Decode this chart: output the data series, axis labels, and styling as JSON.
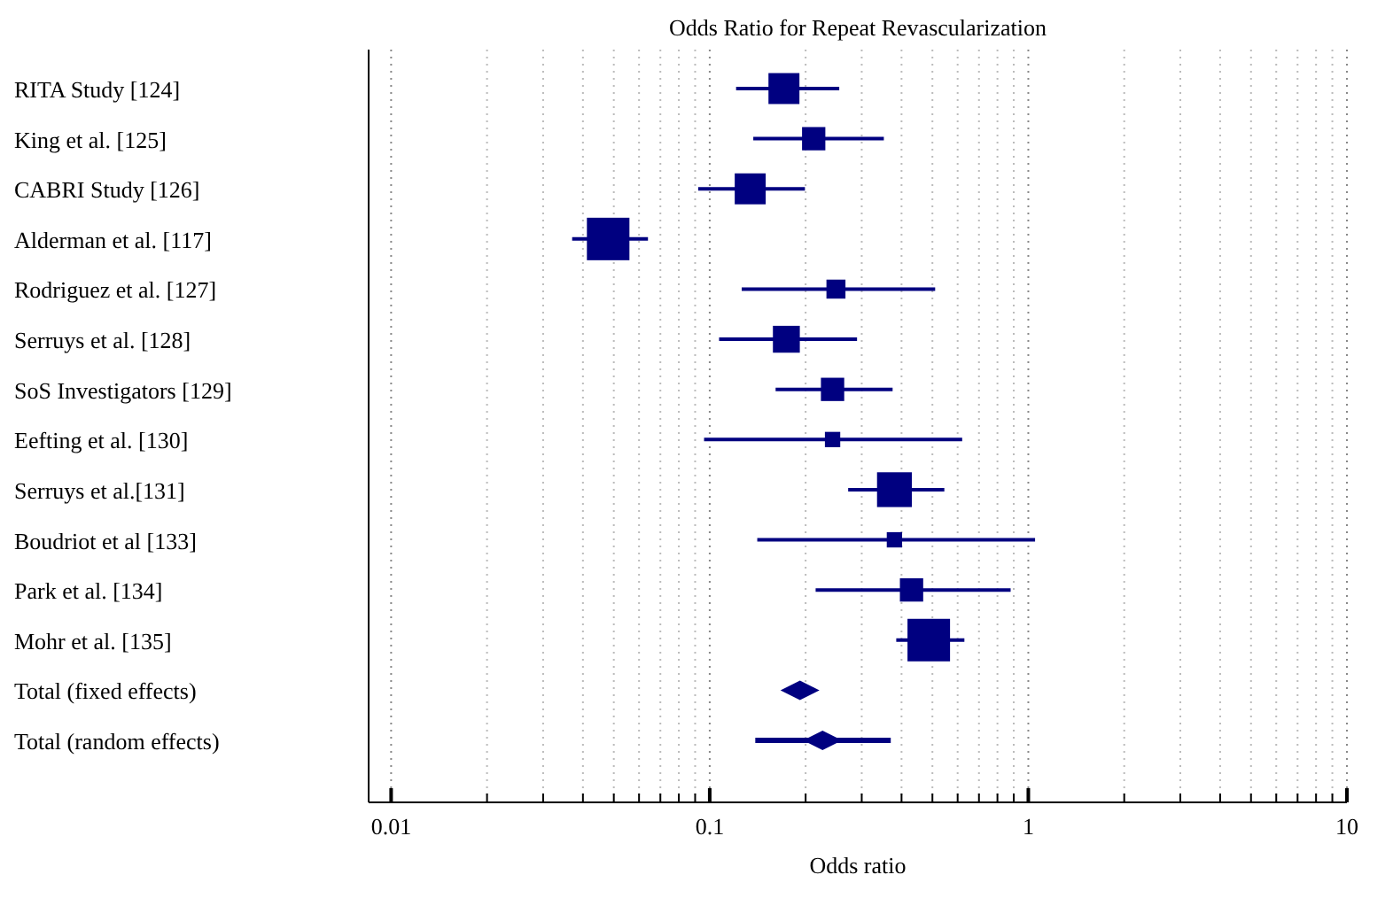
{
  "chart_data": {
    "type": "scatter",
    "orientation": "horizontal",
    "title": "Odds Ratio for Repeat Revascularization",
    "xlabel": "Odds ratio",
    "categories": [
      "RITA Study [124]",
      "King et al. [125]",
      "CABRI Study [126]",
      "Alderman et al. [117]",
      "Rodriguez et al. [127]",
      "Serruys et al. [128]",
      "SoS Investigators [129]",
      "Eefting et al. [130]",
      "Serruys et al.[131]",
      "Boudriot et al [133]",
      "Park et al. [134]",
      "Mohr et al. [135]",
      "Total (fixed effects)",
      "Total (random effects)"
    ],
    "series": [
      {
        "type": "bubble",
        "marker": "square",
        "color": "#000080",
        "values": [
          0.171,
          0.212,
          0.134,
          0.048,
          0.249,
          0.174,
          0.243,
          0.243,
          0.38,
          0.38,
          0.43,
          0.487,
          null,
          null
        ],
        "sizes": [
          0.53,
          0.3,
          0.53,
          1,
          0.2,
          0.4,
          0.3,
          0.13,
          0.67,
          0.13,
          0.3,
          1,
          null,
          null
        ],
        "errors": [
          [
            0.121,
            0.255
          ],
          [
            0.137,
            0.352
          ],
          [
            0.092,
            0.199
          ],
          [
            0.037,
            0.064
          ],
          [
            0.126,
            0.51
          ],
          [
            0.107,
            0.29
          ],
          [
            0.161,
            0.375
          ],
          [
            0.096,
            0.62
          ],
          [
            0.272,
            0.545
          ],
          [
            0.141,
            1.05
          ],
          [
            0.215,
            0.88
          ],
          [
            0.385,
            0.63
          ],
          null,
          null
        ]
      },
      {
        "type": "scatter",
        "marker": "diamond",
        "color": "#000080",
        "values": [
          null,
          null,
          null,
          null,
          null,
          null,
          null,
          null,
          null,
          null,
          null,
          null,
          0.192,
          0.226
        ],
        "errors": [
          null,
          null,
          null,
          null,
          null,
          null,
          null,
          null,
          null,
          null,
          null,
          null,
          [
            0.176,
            0.212
          ],
          [
            0.139,
            0.37
          ]
        ]
      }
    ],
    "log": "x",
    "xlim": [
      0.0085,
      10
    ],
    "xticks": [
      {
        "value": 0.01,
        "label": "0.01"
      },
      {
        "value": 0.02,
        "label": null
      },
      {
        "value": 0.03,
        "label": null
      },
      {
        "value": 0.04,
        "label": null
      },
      {
        "value": 0.05,
        "label": null
      },
      {
        "value": 0.06,
        "label": null
      },
      {
        "value": 0.07,
        "label": null
      },
      {
        "value": 0.08,
        "label": null
      },
      {
        "value": 0.09,
        "label": null
      },
      {
        "value": 0.1,
        "label": "0.1"
      },
      {
        "value": 0.2,
        "label": null
      },
      {
        "value": 0.3,
        "label": null
      },
      {
        "value": 0.4,
        "label": null
      },
      {
        "value": 0.5,
        "label": null
      },
      {
        "value": 0.6,
        "label": null
      },
      {
        "value": 0.7,
        "label": null
      },
      {
        "value": 0.8,
        "label": null
      },
      {
        "value": 0.9,
        "label": null
      },
      1,
      {
        "value": 2,
        "label": null
      },
      {
        "value": 3,
        "label": null
      },
      {
        "value": 4,
        "label": null
      },
      {
        "value": 5,
        "label": null
      },
      {
        "value": 6,
        "label": null
      },
      {
        "value": 7,
        "label": null
      },
      {
        "value": 8,
        "label": null
      },
      {
        "value": 9,
        "label": null
      },
      10
    ],
    "grid": "x"
  }
}
